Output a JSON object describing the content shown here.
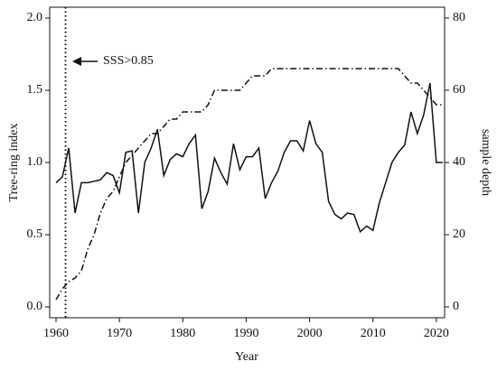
{
  "chart_data": {
    "type": "line",
    "xlabel": "Year",
    "ylabel": "Tree-ring index",
    "y2label": "sample depth",
    "annotation": {
      "text": "SSS>0.85",
      "x": 1961.5
    },
    "x": [
      1960,
      1961,
      1962,
      1963,
      1964,
      1965,
      1966,
      1967,
      1968,
      1969,
      1970,
      1971,
      1972,
      1973,
      1974,
      1975,
      1976,
      1977,
      1978,
      1979,
      1980,
      1981,
      1982,
      1983,
      1984,
      1985,
      1986,
      1987,
      1988,
      1989,
      1990,
      1991,
      1992,
      1993,
      1994,
      1995,
      1996,
      1997,
      1998,
      1999,
      2000,
      2001,
      2002,
      2003,
      2004,
      2005,
      2006,
      2007,
      2008,
      2009,
      2010,
      2011,
      2012,
      2013,
      2014,
      2015,
      2016,
      2017,
      2018,
      2019,
      2020,
      2021
    ],
    "series": [
      {
        "name": "Tree-ring index",
        "color": "#111111",
        "style": "solid",
        "axis": "y",
        "values": [
          0.86,
          0.9,
          1.1,
          0.65,
          0.86,
          0.86,
          0.87,
          0.88,
          0.93,
          0.91,
          0.79,
          1.07,
          1.08,
          0.65,
          1.0,
          1.1,
          1.23,
          0.91,
          1.02,
          1.06,
          1.04,
          1.13,
          1.19,
          0.68,
          0.8,
          1.03,
          0.93,
          0.85,
          1.13,
          0.95,
          1.04,
          1.04,
          1.1,
          0.75,
          0.86,
          0.94,
          1.07,
          1.15,
          1.15,
          1.08,
          1.29,
          1.13,
          1.07,
          0.73,
          0.64,
          0.61,
          0.65,
          0.64,
          0.52,
          0.56,
          0.53,
          0.72,
          0.86,
          1.0,
          1.07,
          1.12,
          1.35,
          1.2,
          1.33,
          1.55,
          1.0,
          1.0
        ]
      },
      {
        "name": "sample depth",
        "color": "#111111",
        "style": "dashdot",
        "axis": "y2",
        "values": [
          2,
          5,
          7,
          8,
          10,
          16,
          20,
          26,
          30,
          32,
          36,
          40,
          42,
          44,
          46,
          48,
          48,
          50,
          52,
          52,
          54,
          54,
          54,
          54,
          56,
          60,
          60,
          60,
          60,
          60,
          62,
          64,
          64,
          64,
          66,
          66,
          66,
          66,
          66,
          66,
          66,
          66,
          66,
          66,
          66,
          66,
          66,
          66,
          66,
          66,
          66,
          66,
          66,
          66,
          66,
          64,
          62,
          62,
          60,
          58,
          56,
          56
        ]
      }
    ],
    "xlim": [
      1959,
      2021.3
    ],
    "xticks": [
      1960,
      1970,
      1980,
      1990,
      2000,
      2010,
      2020
    ],
    "ylim": [
      -0.075,
      2.075
    ],
    "yticks": [
      {
        "value": 0,
        "label": "0.0"
      },
      0.5,
      {
        "value": 1,
        "label": "1.0"
      },
      1.5,
      {
        "value": 2,
        "label": "2.0"
      }
    ],
    "y2lim": [
      -3,
      83
    ],
    "y2ticks": [
      0,
      20,
      40,
      60,
      80
    ]
  }
}
